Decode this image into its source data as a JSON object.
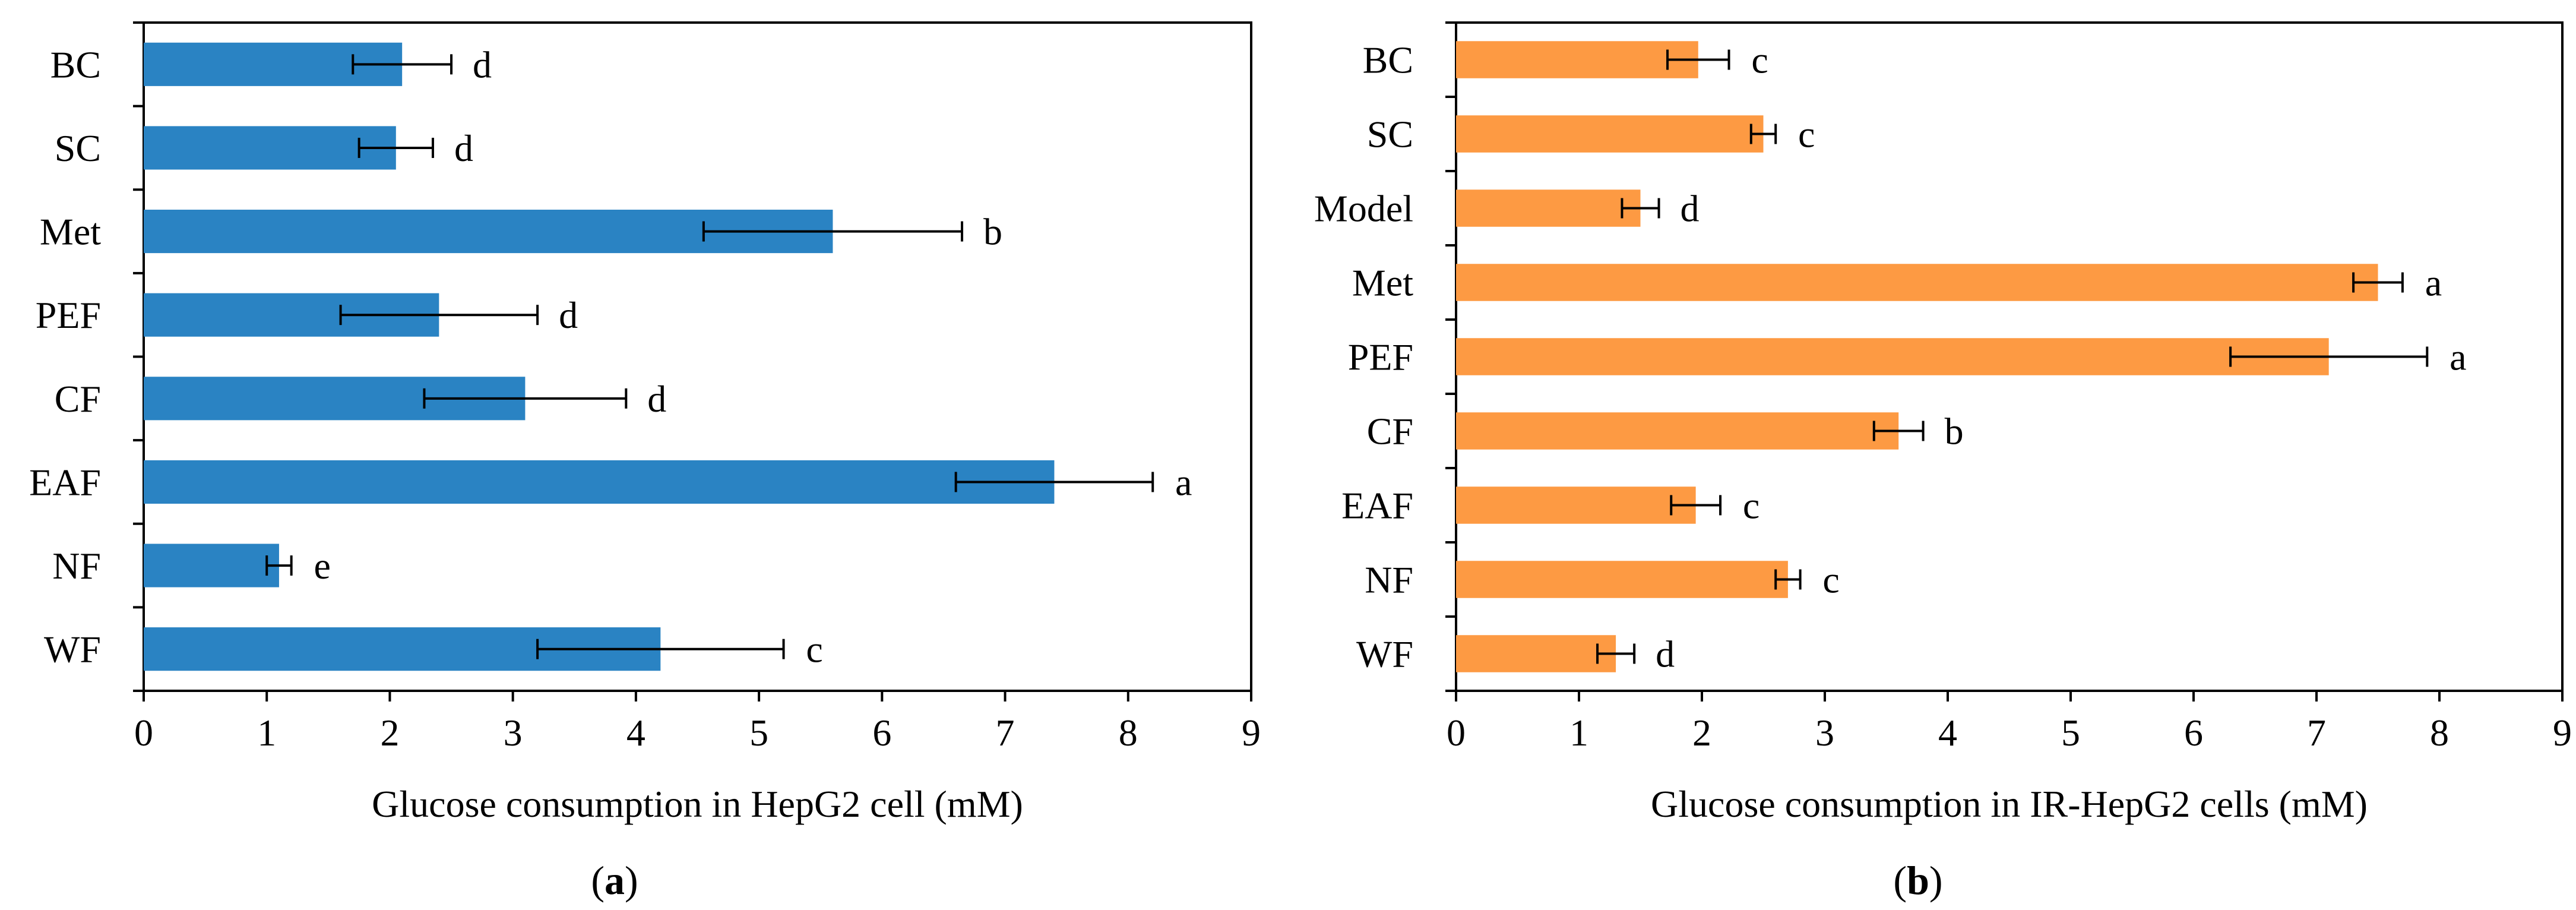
{
  "chart_data": [
    {
      "panel_label": "(a)",
      "type": "bar",
      "orientation": "horizontal",
      "title": "",
      "xlabel": "Glucose consumption in HepG2 cell (mM)",
      "ylabel": "",
      "xlim": [
        0,
        9
      ],
      "xticks": [
        "0",
        "1",
        "2",
        "3",
        "4",
        "5",
        "6",
        "7",
        "8",
        "9"
      ],
      "grid": false,
      "legend": "none",
      "color": "#2a83c3",
      "categories": [
        "BC",
        "SC",
        "Met",
        "PEF",
        "CF",
        "EAF",
        "NF",
        "WF"
      ],
      "values": [
        2.1,
        2.05,
        5.6,
        2.4,
        3.1,
        7.4,
        1.1,
        4.2
      ],
      "errors": [
        0.4,
        0.3,
        1.05,
        0.8,
        0.82,
        0.8,
        0.1,
        1.0
      ],
      "significance": [
        "d",
        "d",
        "b",
        "d",
        "d",
        "a",
        "e",
        "c"
      ]
    },
    {
      "panel_label": "(b)",
      "type": "bar",
      "orientation": "horizontal",
      "title": "",
      "xlabel": "Glucose consumption in IR-HepG2 cells (mM)",
      "ylabel": "",
      "xlim": [
        0,
        9
      ],
      "xticks": [
        "0",
        "1",
        "2",
        "3",
        "4",
        "5",
        "6",
        "7",
        "8",
        "9"
      ],
      "grid": false,
      "legend": "none",
      "color": "#fd9a43",
      "categories": [
        "BC",
        "SC",
        "Model",
        "Met",
        "PEF",
        "CF",
        "EAF",
        "NF",
        "WF"
      ],
      "values": [
        1.97,
        2.5,
        1.5,
        7.5,
        7.1,
        3.6,
        1.95,
        2.7,
        1.3
      ],
      "errors": [
        0.25,
        0.1,
        0.15,
        0.2,
        0.8,
        0.2,
        0.2,
        0.1,
        0.15
      ],
      "significance": [
        "c",
        "c",
        "d",
        "a",
        "a",
        "b",
        "c",
        "c",
        "d"
      ]
    }
  ]
}
